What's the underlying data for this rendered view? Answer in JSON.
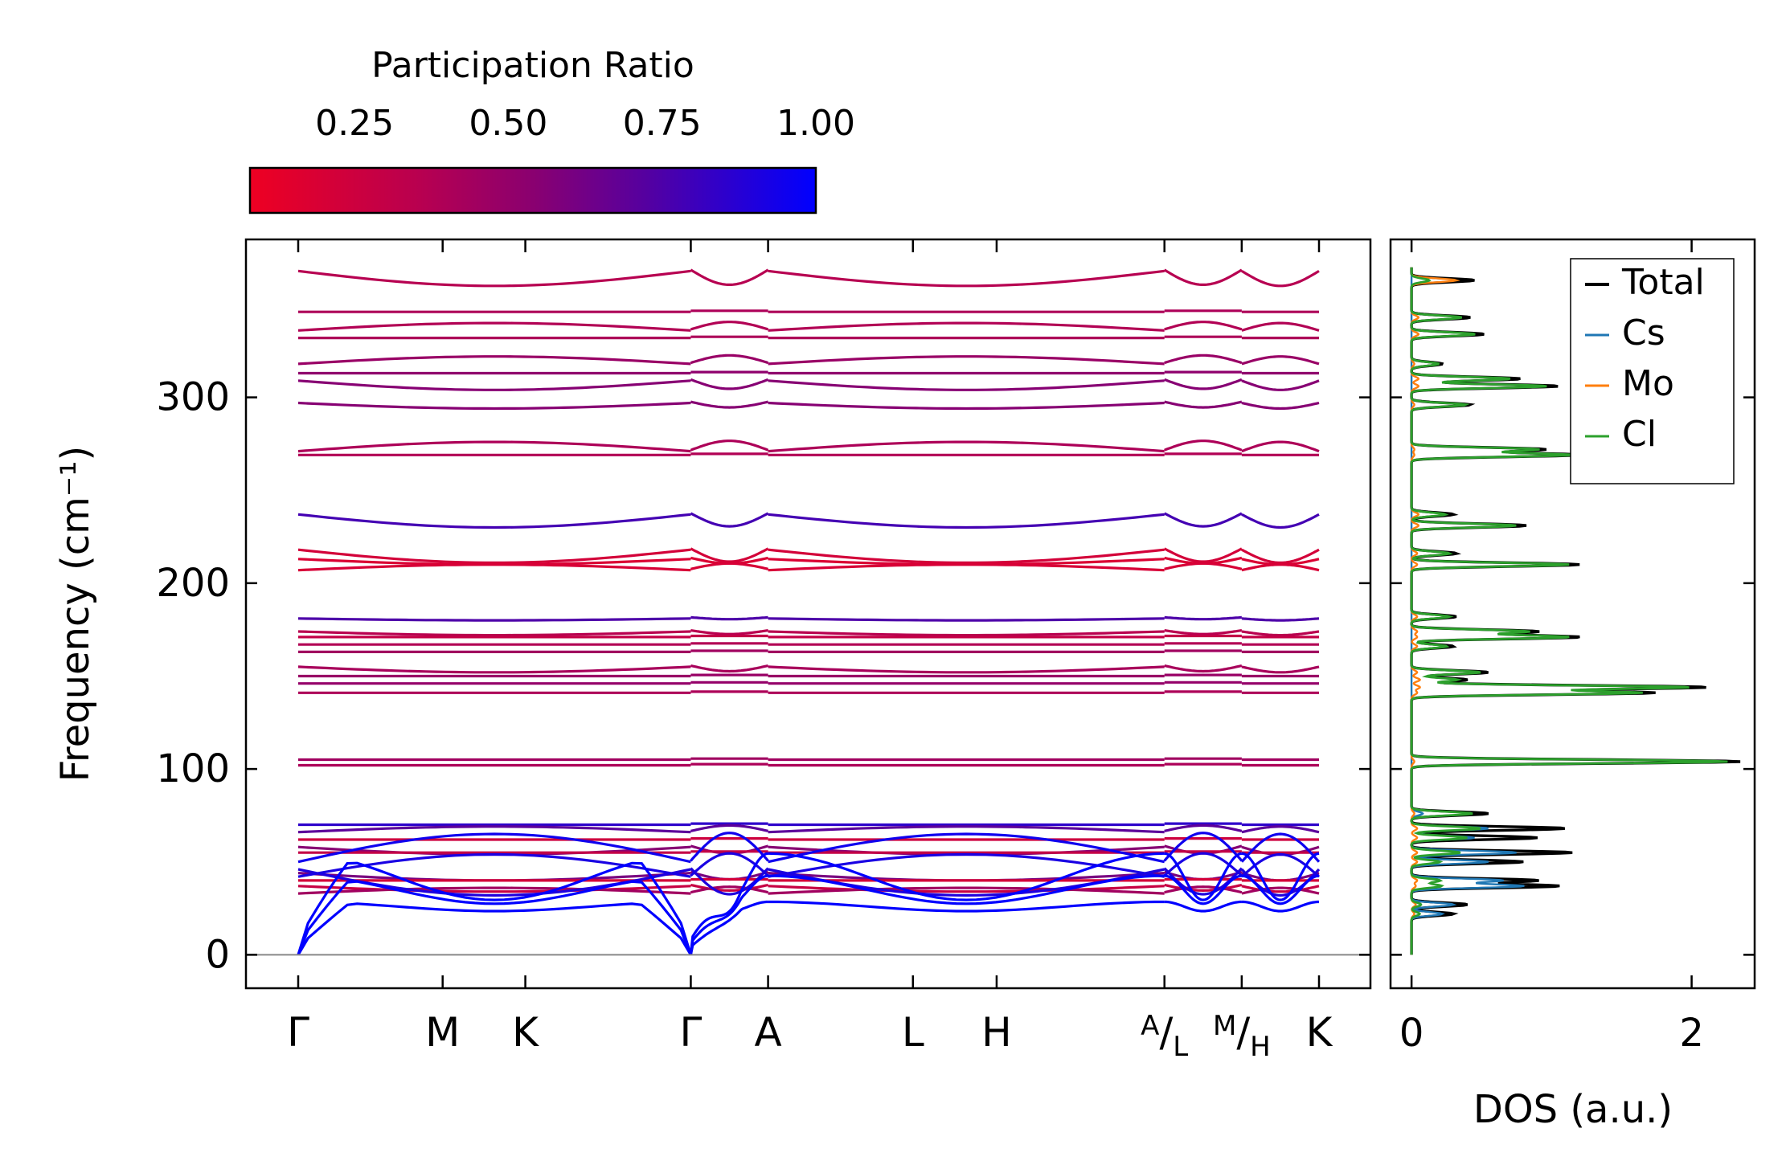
{
  "chart_data": [
    {
      "type": "line",
      "title": "",
      "xlabel": "",
      "ylabel": "Frequency (cm⁻¹)",
      "ylim": [
        -18,
        385
      ],
      "yticks": [
        0,
        100,
        200,
        300
      ],
      "ytick_labels": [
        "0",
        "100",
        "200",
        "300"
      ],
      "kpath_labels": [
        "Γ",
        "M",
        "K",
        "Γ",
        "A",
        "L",
        "H",
        "A/L",
        "M/H",
        "K"
      ],
      "kpath_label_parts": {
        "A/L": {
          "sup": "A",
          "sep": "/",
          "sub": "L"
        },
        "M/H": {
          "sup": "M",
          "sep": "/",
          "sub": "H"
        }
      },
      "kpath_positions": [
        0,
        0.1415,
        0.2225,
        0.3846,
        0.4603,
        0.6022,
        0.6842,
        0.8486,
        0.9243,
        1.0
      ],
      "segments": [
        [
          0,
          0.3846
        ],
        [
          0.3846,
          0.4603
        ],
        [
          0.4603,
          0.8486
        ],
        [
          0.8486,
          0.9243
        ],
        [
          0.9243,
          1.0
        ]
      ],
      "colorbar": {
        "label": "Participation Ratio",
        "ticks": [
          0.25,
          0.5,
          0.75,
          1.0
        ],
        "tick_labels": [
          "0.25",
          "0.50",
          "0.75",
          "1.00"
        ],
        "range": [
          0.08,
          1.0
        ],
        "color_low": "#ee0022",
        "color_high": "#0000ff"
      },
      "optical_bands": [
        {
          "f": 368,
          "d": -8,
          "pr": 0.36
        },
        {
          "f": 346,
          "d": 0,
          "pr": 0.4
        },
        {
          "f": 336,
          "d": 4,
          "pr": 0.38
        },
        {
          "f": 332,
          "d": 0,
          "pr": 0.4
        },
        {
          "f": 318,
          "d": 4,
          "pr": 0.48
        },
        {
          "f": 313,
          "d": 0,
          "pr": 0.52
        },
        {
          "f": 309,
          "d": -5,
          "pr": 0.55
        },
        {
          "f": 297,
          "d": -3,
          "pr": 0.55
        },
        {
          "f": 271,
          "d": 5,
          "pr": 0.4
        },
        {
          "f": 269,
          "d": 0,
          "pr": 0.38
        },
        {
          "f": 237,
          "d": -7,
          "pr": 0.78
        },
        {
          "f": 218,
          "d": -7,
          "pr": 0.22
        },
        {
          "f": 213,
          "d": -3,
          "pr": 0.18
        },
        {
          "f": 207,
          "d": 3,
          "pr": 0.2
        },
        {
          "f": 181,
          "d": -1,
          "pr": 0.75
        },
        {
          "f": 174,
          "d": -2,
          "pr": 0.35
        },
        {
          "f": 171,
          "d": 0,
          "pr": 0.3
        },
        {
          "f": 167,
          "d": 0,
          "pr": 0.38
        },
        {
          "f": 163,
          "d": 0,
          "pr": 0.45
        },
        {
          "f": 155,
          "d": -3,
          "pr": 0.42
        },
        {
          "f": 150,
          "d": 0,
          "pr": 0.48
        },
        {
          "f": 146,
          "d": 0,
          "pr": 0.5
        },
        {
          "f": 141,
          "d": 0,
          "pr": 0.4
        },
        {
          "f": 105,
          "d": 0,
          "pr": 0.45
        },
        {
          "f": 102,
          "d": 0,
          "pr": 0.4
        }
      ],
      "acoustic_bands": [
        {
          "f": 70,
          "d": 0,
          "pr": 0.85
        },
        {
          "f": 66,
          "d": 3,
          "pr": 0.7
        },
        {
          "f": 62,
          "d": 0,
          "pr": 0.25
        },
        {
          "f": 58,
          "d": -4,
          "pr": 0.55
        },
        {
          "f": 55,
          "d": 0,
          "pr": 0.3
        },
        {
          "f": 44,
          "d": -4,
          "pr": 0.6
        },
        {
          "f": 40,
          "d": 0,
          "pr": 0.22
        },
        {
          "f": 37,
          "d": -3,
          "pr": 0.28
        },
        {
          "f": 33,
          "d": 3,
          "pr": 0.45
        }
      ],
      "dense_bands": [
        {
          "f": 50,
          "d": 15,
          "pr": 0.95
        },
        {
          "f": 46,
          "d": -14,
          "pr": 0.9
        },
        {
          "f": 42,
          "d": 12,
          "pr": 0.92
        }
      ],
      "acoustic_branches": [
        {
          "mid": 26,
          "amp": 5,
          "pr": 1.0
        },
        {
          "mid": 35,
          "amp": 15,
          "pr": 1.0
        },
        {
          "mid": 42,
          "amp": 25,
          "pr": 1.0
        }
      ],
      "zero_line": 0
    },
    {
      "type": "line",
      "title": "",
      "xlabel": "DOS (a.u.)",
      "ylabel": "",
      "xlim": [
        -0.15,
        2.45
      ],
      "ylim": [
        -18,
        385
      ],
      "xticks": [
        0,
        2
      ],
      "xtick_labels": [
        "0",
        "2"
      ],
      "series": [
        {
          "name": "Total",
          "color": "#000000"
        },
        {
          "name": "Cs",
          "color": "#1f77b4"
        },
        {
          "name": "Mo",
          "color": "#ff7f0e"
        },
        {
          "name": "Cl",
          "color": "#2ca02c"
        }
      ],
      "peaks": [
        {
          "f": 363,
          "amp": 0.45,
          "cs": 0.0,
          "mo": 0.32
        },
        {
          "f": 343,
          "amp": 0.42,
          "cs": 0.0,
          "mo": 0.05
        },
        {
          "f": 334,
          "amp": 0.52,
          "cs": 0.0,
          "mo": 0.05
        },
        {
          "f": 318,
          "amp": 0.22,
          "cs": 0.0,
          "mo": 0.02
        },
        {
          "f": 310,
          "amp": 0.78,
          "cs": 0.0,
          "mo": 0.05
        },
        {
          "f": 306,
          "amp": 1.05,
          "cs": 0.0,
          "mo": 0.05
        },
        {
          "f": 296,
          "amp": 0.42,
          "cs": 0.0,
          "mo": 0.02
        },
        {
          "f": 272,
          "amp": 0.95,
          "cs": 0.0,
          "mo": 0.02
        },
        {
          "f": 269,
          "amp": 1.2,
          "cs": 0.0,
          "mo": 0.02
        },
        {
          "f": 237,
          "amp": 0.3,
          "cs": 0.0,
          "mo": 0.05
        },
        {
          "f": 231,
          "amp": 0.82,
          "cs": 0.0,
          "mo": 0.05
        },
        {
          "f": 216,
          "amp": 0.32,
          "cs": 0.0,
          "mo": 0.04
        },
        {
          "f": 210,
          "amp": 1.2,
          "cs": 0.0,
          "mo": 0.04
        },
        {
          "f": 182,
          "amp": 0.32,
          "cs": 0.0,
          "mo": 0.04
        },
        {
          "f": 174,
          "amp": 0.9,
          "cs": 0.0,
          "mo": 0.04
        },
        {
          "f": 171,
          "amp": 1.2,
          "cs": 0.0,
          "mo": 0.04
        },
        {
          "f": 166,
          "amp": 0.3,
          "cs": 0.0,
          "mo": 0.04
        },
        {
          "f": 152,
          "amp": 0.55,
          "cs": 0.0,
          "mo": 0.04
        },
        {
          "f": 148,
          "amp": 0.4,
          "cs": 0.0,
          "mo": 0.06
        },
        {
          "f": 144,
          "amp": 2.1,
          "cs": 0.0,
          "mo": 0.06
        },
        {
          "f": 141,
          "amp": 1.72,
          "cs": 0.0,
          "mo": 0.04
        },
        {
          "f": 104,
          "amp": 2.35,
          "cs": 0.0,
          "mo": 0.02
        },
        {
          "f": 76,
          "amp": 0.55,
          "cs": 0.08,
          "mo": 0.02
        },
        {
          "f": 68,
          "amp": 1.1,
          "cs": 0.55,
          "mo": 0.04
        },
        {
          "f": 63,
          "amp": 0.9,
          "cs": 0.45,
          "mo": 0.04
        },
        {
          "f": 55,
          "amp": 1.15,
          "cs": 0.75,
          "mo": 0.04
        },
        {
          "f": 50,
          "amp": 0.8,
          "cs": 0.55,
          "mo": 0.04
        },
        {
          "f": 40,
          "amp": 0.9,
          "cs": 0.65,
          "mo": 0.04
        },
        {
          "f": 37,
          "amp": 1.05,
          "cs": 0.8,
          "mo": 0.03
        },
        {
          "f": 27,
          "amp": 0.4,
          "cs": 0.3,
          "mo": 0.03
        },
        {
          "f": 22,
          "amp": 0.3,
          "cs": 0.22,
          "mo": 0.02
        }
      ]
    }
  ]
}
